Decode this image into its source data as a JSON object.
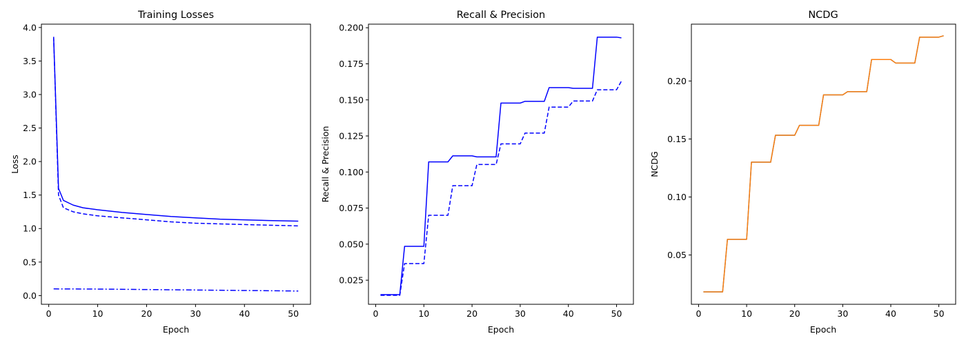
{
  "chart_data": [
    {
      "type": "line",
      "title": "Training Losses",
      "xlabel": "Epoch",
      "ylabel": "Loss",
      "xlim": [
        -1.5,
        53.5
      ],
      "ylim": [
        -0.13,
        4.05
      ],
      "xticks": [
        0,
        10,
        20,
        30,
        40,
        50
      ],
      "xtick_labels": [
        "0",
        "10",
        "20",
        "30",
        "40",
        "50"
      ],
      "yticks": [
        0,
        0.5,
        1,
        1.5,
        2,
        2.5,
        3,
        3.5,
        4
      ],
      "ytick_labels": [
        "0.0",
        "0.5",
        "1.0",
        "1.5",
        "2.0",
        "2.5",
        "3.0",
        "3.5",
        "4.0"
      ],
      "grid": false,
      "series": [
        {
          "color": "#0000ff",
          "dash": "solid",
          "x": [
            1,
            2,
            3,
            5,
            7,
            10,
            15,
            20,
            25,
            30,
            35,
            40,
            45,
            51
          ],
          "y": [
            3.86,
            1.6,
            1.42,
            1.35,
            1.31,
            1.28,
            1.24,
            1.21,
            1.18,
            1.16,
            1.14,
            1.13,
            1.12,
            1.11
          ]
        },
        {
          "color": "#0000ff",
          "dash": "dashed",
          "x": [
            1,
            2,
            3,
            5,
            7,
            10,
            15,
            20,
            25,
            30,
            35,
            40,
            45,
            51
          ],
          "y": [
            3.86,
            1.5,
            1.31,
            1.25,
            1.22,
            1.19,
            1.16,
            1.13,
            1.1,
            1.08,
            1.07,
            1.06,
            1.05,
            1.04
          ]
        },
        {
          "color": "#0000ff",
          "dash": "dashdot",
          "x": [
            1,
            10,
            20,
            30,
            40,
            51
          ],
          "y": [
            0.1,
            0.097,
            0.09,
            0.083,
            0.076,
            0.068
          ]
        }
      ]
    },
    {
      "type": "line",
      "title": "Recall & Precision",
      "xlabel": "Epoch",
      "ylabel": "Recall & Precision",
      "xlim": [
        -1.5,
        53.5
      ],
      "ylim": [
        0.0083,
        0.2025
      ],
      "xticks": [
        0,
        10,
        20,
        30,
        40,
        50
      ],
      "xtick_labels": [
        "0",
        "10",
        "20",
        "30",
        "40",
        "50"
      ],
      "yticks": [
        0.025,
        0.05,
        0.075,
        0.1,
        0.125,
        0.15,
        0.175,
        0.2
      ],
      "ytick_labels": [
        "0.025",
        "0.050",
        "0.075",
        "0.100",
        "0.125",
        "0.150",
        "0.175",
        "0.200"
      ],
      "grid": false,
      "series": [
        {
          "color": "#0000ff",
          "dash": "solid",
          "x": [
            1,
            5,
            6,
            10,
            11,
            15,
            16,
            20,
            21,
            25,
            26,
            30,
            31,
            35,
            36,
            40,
            41,
            45,
            46,
            50,
            51
          ],
          "y": [
            0.015,
            0.015,
            0.0485,
            0.0485,
            0.107,
            0.107,
            0.1112,
            0.1112,
            0.1105,
            0.1105,
            0.1478,
            0.1478,
            0.149,
            0.149,
            0.1585,
            0.1585,
            0.158,
            0.158,
            0.1935,
            0.1935,
            0.193
          ]
        },
        {
          "color": "#0000ff",
          "dash": "dashed",
          "x": [
            1,
            5,
            6,
            10,
            11,
            15,
            16,
            20,
            21,
            25,
            26,
            30,
            31,
            35,
            36,
            40,
            41,
            45,
            46,
            50,
            51
          ],
          "y": [
            0.0145,
            0.0145,
            0.0365,
            0.0365,
            0.07,
            0.07,
            0.0905,
            0.0905,
            0.1052,
            0.1052,
            0.1195,
            0.1195,
            0.127,
            0.127,
            0.145,
            0.145,
            0.1492,
            0.1492,
            0.157,
            0.157,
            0.163
          ]
        }
      ]
    },
    {
      "type": "line",
      "title": "NCDG",
      "xlabel": "Epoch",
      "ylabel": "NCDG",
      "xlim": [
        -1.5,
        53.5
      ],
      "ylim": [
        0.0075,
        0.249
      ],
      "xticks": [
        0,
        10,
        20,
        30,
        40,
        50
      ],
      "xtick_labels": [
        "0",
        "10",
        "20",
        "30",
        "40",
        "50"
      ],
      "yticks": [
        0.05,
        0.1,
        0.15,
        0.2
      ],
      "ytick_labels": [
        "0.05",
        "0.10",
        "0.15",
        "0.20"
      ],
      "grid": false,
      "series": [
        {
          "color": "#1f77b4",
          "dash": "solid",
          "x": [
            1,
            5,
            6,
            10,
            11,
            15,
            16,
            20,
            21,
            25,
            26,
            30,
            31,
            35,
            36,
            40,
            41,
            45,
            46,
            50,
            51
          ],
          "y": [
            0.0182,
            0.0182,
            0.0635,
            0.0635,
            0.13,
            0.13,
            0.1532,
            0.1532,
            0.1618,
            0.1618,
            0.188,
            0.188,
            0.1908,
            0.1908,
            0.2185,
            0.2185,
            0.2155,
            0.2155,
            0.2378,
            0.2378,
            0.239
          ]
        },
        {
          "color": "#ff7f0e",
          "dash": "solid",
          "x": [
            1,
            5,
            6,
            10,
            11,
            15,
            16,
            20,
            21,
            25,
            26,
            30,
            31,
            35,
            36,
            40,
            41,
            45,
            46,
            50,
            51
          ],
          "y": [
            0.0182,
            0.0182,
            0.0635,
            0.0635,
            0.13,
            0.13,
            0.1532,
            0.1532,
            0.1618,
            0.1618,
            0.188,
            0.188,
            0.1908,
            0.1908,
            0.2185,
            0.2185,
            0.2155,
            0.2155,
            0.2378,
            0.2378,
            0.239
          ]
        }
      ]
    }
  ]
}
